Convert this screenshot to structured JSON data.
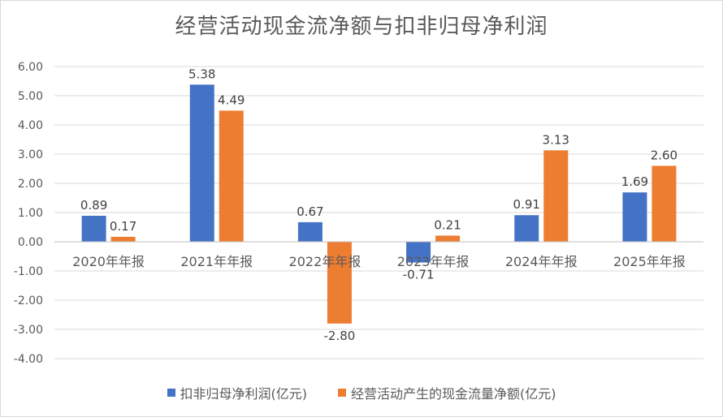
{
  "chart_data": {
    "type": "bar",
    "title": "经营活动现金流净额与扣非归母净利润",
    "categories": [
      "2020年年报",
      "2021年年报",
      "2022年年报",
      "2023年年报",
      "2024年年报",
      "2025年年报"
    ],
    "series": [
      {
        "name": "扣非归母净利润(亿元)",
        "color": "#4472C4",
        "values": [
          0.89,
          5.38,
          0.67,
          -0.71,
          0.91,
          1.69
        ]
      },
      {
        "name": "经营活动产生的现金流量净额(亿元)",
        "color": "#ED7D31",
        "values": [
          0.17,
          4.49,
          -2.8,
          0.21,
          3.13,
          2.6
        ]
      }
    ],
    "yticks": [
      "6.00",
      "5.00",
      "4.00",
      "3.00",
      "2.00",
      "1.00",
      "0.00",
      "-1.00",
      "-2.00",
      "-3.00",
      "-4.00"
    ],
    "ylim": [
      -4,
      6
    ],
    "grid": true,
    "legend": "bottom"
  }
}
